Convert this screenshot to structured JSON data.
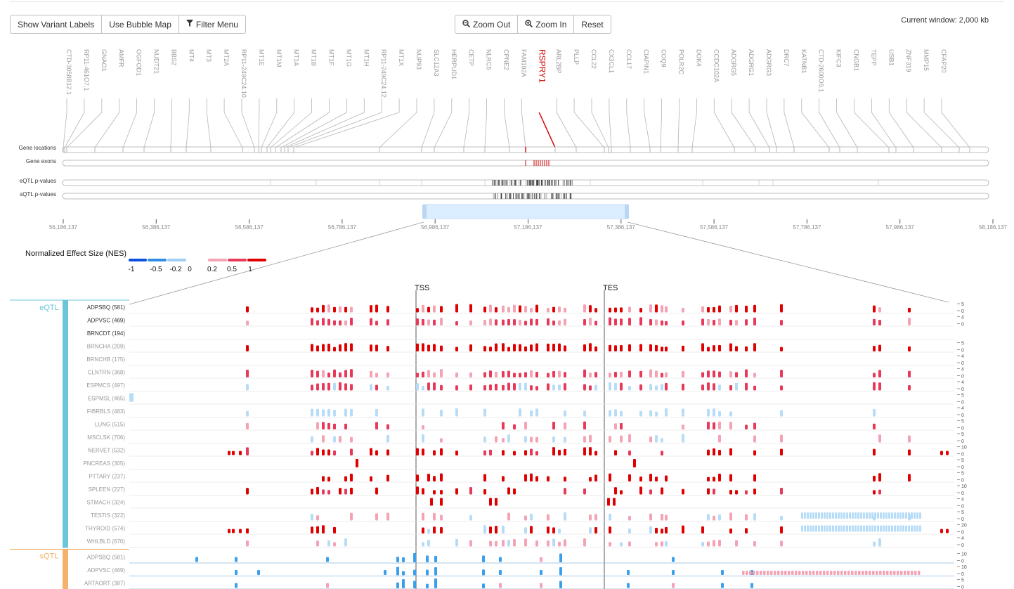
{
  "toolbar": {
    "show_variant_labels": "Show Variant Labels",
    "use_bubble_map": "Use Bubble Map",
    "filter_menu": "Filter Menu",
    "zoom_out": "Zoom Out",
    "zoom_in": "Zoom In",
    "reset": "Reset",
    "current_window": "Current window: 2,000 kb"
  },
  "genes": [
    "CTD-3058B12.1",
    "RP11-461O7.1",
    "GNAO1",
    "AMFR",
    "OGFOD1",
    "NUDT21",
    "BBS2",
    "MT4",
    "MT3",
    "MT2A",
    "RP11-249C24.10",
    "MT1E",
    "MT1M",
    "MT1A",
    "MT1B",
    "MT1F",
    "MT1G",
    "MT1H",
    "RP11-249C24.12",
    "MT1X",
    "NUP93",
    "SLC12A3",
    "HERPUD1",
    "CETP",
    "NLRC5",
    "CPNE2",
    "FAM192A",
    "RSPRY1",
    "ARL2BP",
    "PLLP",
    "CCL22",
    "CX3CL1",
    "CCL17",
    "CIAPIN1",
    "COQ9",
    "POLR2C",
    "DOK4",
    "CCDC102A",
    "ADGRG5",
    "ADGRG1",
    "ADGRG3",
    "DRC7",
    "KATNB1",
    "CTD-2600O9.1",
    "KIFC3",
    "CNGB1",
    "TEPP",
    "USB1",
    "ZNF319",
    "MMP15",
    "CFAP20"
  ],
  "selected_gene": "RSPRY1",
  "tracks": {
    "gene_locations": "Gene locations",
    "gene_exons": "Gene exons",
    "eqtl_pvalues": "eQTL p-values",
    "sqtl_pvalues": "sQTL p-values"
  },
  "axis_ticks": [
    "56,186,137",
    "56,386,137",
    "56,586,137",
    "56,786,137",
    "56,986,137",
    "57,186,137",
    "57,386,137",
    "57,586,137",
    "57,786,137",
    "57,986,137",
    "58,186,137"
  ],
  "nes_legend": {
    "title": "Normalized Effect Size (NES)",
    "labels": [
      "-1",
      "-0.5",
      "-0.2",
      "0",
      "0.2",
      "0.5",
      "1"
    ],
    "colors": [
      "#0b4fe0",
      "#2f8de4",
      "#9fcff5",
      "#f4a3b4",
      "#e8395a",
      "#e00000"
    ]
  },
  "markers": {
    "tss": "TSS",
    "tes": "TES"
  },
  "groups": {
    "eqtl": "eQTL",
    "sqtl": "sQTL"
  },
  "eqtl_rows": [
    {
      "label": "ADPSBQ (581)",
      "ticks": [
        "5",
        "0"
      ]
    },
    {
      "label": "ADPVSC (469)",
      "ticks": [
        "4",
        "0"
      ]
    },
    {
      "label": "BRNCDT (194)",
      "ticks": []
    },
    {
      "label": "BRNCHA (209)",
      "ticks": [
        "5",
        "0"
      ]
    },
    {
      "label": "BRNCHB (175)",
      "ticks": [
        "4",
        "0"
      ]
    },
    {
      "label": "CLNTRN (368)",
      "ticks": [
        "4",
        "0"
      ]
    },
    {
      "label": "ESPMCS (497)",
      "ticks": [
        "4",
        "0"
      ]
    },
    {
      "label": "ESPMSL (465)",
      "ticks": [
        "5",
        "0"
      ]
    },
    {
      "label": "FIBRBLS (483)",
      "ticks": [
        "4",
        "0"
      ]
    },
    {
      "label": "LUNG (515)",
      "ticks": [
        "5",
        "0"
      ]
    },
    {
      "label": "MSCLSK (706)",
      "ticks": [
        "5",
        "0"
      ]
    },
    {
      "label": "NERVET (532)",
      "ticks": [
        "10",
        "0"
      ]
    },
    {
      "label": "PNCREAS (305)",
      "ticks": [
        "5",
        "0"
      ]
    },
    {
      "label": "PTTARY (237)",
      "ticks": [
        "5",
        "0"
      ]
    },
    {
      "label": "SPLEEN (227)",
      "ticks": [
        "10",
        "0"
      ]
    },
    {
      "label": "STMACH (324)",
      "ticks": [
        "4",
        "0"
      ]
    },
    {
      "label": "TESTIS (322)",
      "ticks": [
        "5",
        "0"
      ]
    },
    {
      "label": "THYROID (574)",
      "ticks": [
        "20",
        "0"
      ]
    },
    {
      "label": "WHLBLD (670)",
      "ticks": [
        "4",
        "0"
      ]
    }
  ],
  "sqtl_rows": [
    {
      "label": "ADPSBQ (581)",
      "ticks": [
        "10",
        "0"
      ]
    },
    {
      "label": "ADPVSC (469)",
      "ticks": [
        "10",
        "0"
      ]
    },
    {
      "label": "ARTAORT (387)",
      "ticks": [
        "5",
        "0"
      ]
    }
  ],
  "colors": {
    "eqtl_accent": "#6cc5d9",
    "sqtl_accent": "#f4b26a",
    "selected": "#d40000"
  }
}
